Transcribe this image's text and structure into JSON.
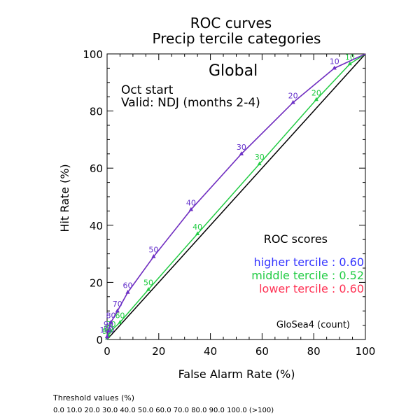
{
  "title_line1": "ROC curves",
  "title_line2": "Precip tercile categories",
  "region": "Global",
  "start_text": "Oct start",
  "valid_text": "Valid: NDJ (months 2-4)",
  "model_note": "GloSea4 (count)",
  "threshold_title": "Threshold values (%)",
  "threshold_values": "0.0 10.0 20.0 30.0 40.0 50.0 60.0 70.0 80.0 90.0 100.0 (>100)",
  "roc_scores_title": "ROC scores",
  "scores": [
    {
      "text": "higher tercile : 0.60",
      "color": "#3333ff"
    },
    {
      "text": "middle tercile : 0.52",
      "color": "#22cc44"
    },
    {
      "text": "lower tercile : 0.60",
      "color": "#ff3355"
    }
  ],
  "chart_data": {
    "type": "line",
    "title": "ROC curves Precip tercile categories",
    "xlabel": "False Alarm Rate (%)",
    "ylabel": "Hit Rate (%)",
    "xlim": [
      0,
      100
    ],
    "ylim": [
      0,
      100
    ],
    "x_ticks": [
      0,
      20,
      40,
      60,
      80,
      100
    ],
    "y_ticks": [
      0,
      20,
      40,
      60,
      80,
      100
    ],
    "grid": false,
    "series": [
      {
        "name": "higher tercile",
        "color": "#6633cc",
        "points": [
          [
            0,
            0
          ],
          [
            0,
            1
          ],
          [
            0.5,
            3
          ],
          [
            1.5,
            6
          ],
          [
            4,
            10
          ],
          [
            8,
            16.5
          ],
          [
            18,
            29
          ],
          [
            32.5,
            45.5
          ],
          [
            52,
            65
          ],
          [
            72,
            83
          ],
          [
            88,
            95
          ],
          [
            100,
            100
          ]
        ],
        "labels": [
          "",
          "100",
          "90",
          "80",
          "70",
          "60",
          "50",
          "40",
          "30",
          "20",
          "10",
          ""
        ]
      },
      {
        "name": "lower tercile",
        "color": "#ff3355",
        "points": [
          [
            0,
            0
          ],
          [
            0,
            1
          ],
          [
            0.5,
            3
          ],
          [
            1.5,
            6
          ],
          [
            4,
            10
          ],
          [
            8,
            16.5
          ],
          [
            18,
            29
          ],
          [
            32.5,
            45.5
          ],
          [
            52,
            65
          ],
          [
            72,
            83
          ],
          [
            88,
            95
          ],
          [
            100,
            100
          ]
        ],
        "labels": [
          "",
          "",
          "",
          "",
          "",
          "",
          "",
          "",
          "",
          "",
          "",
          ""
        ]
      },
      {
        "name": "middle tercile",
        "color": "#22cc44",
        "points": [
          [
            0,
            0
          ],
          [
            0,
            0.5
          ],
          [
            0.5,
            1.5
          ],
          [
            1.5,
            3
          ],
          [
            5,
            6
          ],
          [
            16,
            17.5
          ],
          [
            35,
            37
          ],
          [
            59,
            61.5
          ],
          [
            81,
            84
          ],
          [
            94,
            96.5
          ],
          [
            100,
            100
          ]
        ],
        "labels": [
          "",
          "90",
          "80",
          "70",
          "60",
          "50",
          "40",
          "30",
          "20",
          "10",
          ""
        ]
      }
    ],
    "reference_line": {
      "from": [
        0,
        0
      ],
      "to": [
        100,
        100
      ],
      "color": "#000000"
    }
  }
}
